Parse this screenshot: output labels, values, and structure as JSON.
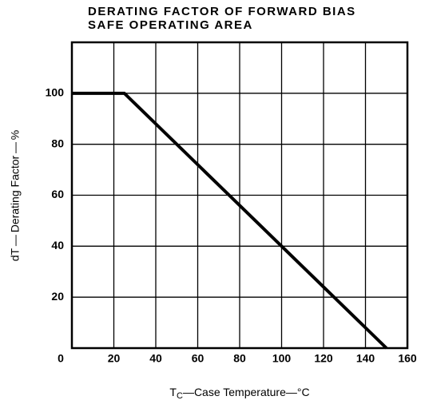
{
  "chart_data": {
    "type": "line",
    "title_lines": [
      "DERATING FACTOR OF FORWARD BIAS",
      "SAFE OPERATING AREA"
    ],
    "y_label": "dT — Derating Factor — %",
    "x_label_symbol": "T",
    "x_label_subscript": "C",
    "x_label": "—Case Temperature—°C",
    "x": [
      0,
      25,
      150
    ],
    "series": [
      {
        "color": "#000000",
        "values": [
          100,
          100,
          0
        ]
      }
    ],
    "xlim": [
      0,
      160
    ],
    "xticks": [
      0,
      20,
      40,
      60,
      80,
      100,
      120,
      140,
      160
    ],
    "ylim": [
      0,
      120
    ],
    "yticks": [
      20,
      40,
      60,
      80,
      100
    ],
    "grid": true
  }
}
